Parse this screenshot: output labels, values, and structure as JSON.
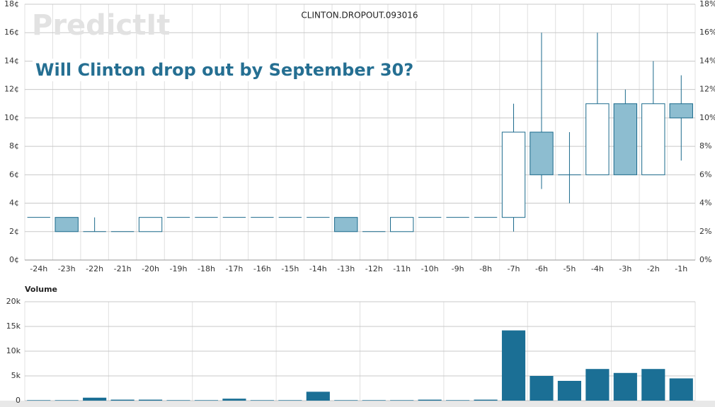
{
  "chart_data": [
    {
      "type": "candlestick",
      "title": "CLINTON.DROPOUT.093016",
      "subtitle": "Will Clinton drop out by September 30?",
      "watermark": "PredictIt",
      "categories": [
        "-24h",
        "-23h",
        "-22h",
        "-21h",
        "-20h",
        "-19h",
        "-18h",
        "-17h",
        "-16h",
        "-15h",
        "-14h",
        "-13h",
        "-12h",
        "-11h",
        "-10h",
        "-9h",
        "-8h",
        "-7h",
        "-6h",
        "-5h",
        "-4h",
        "-3h",
        "-2h",
        "-1h"
      ],
      "open": [
        3,
        3,
        2,
        2,
        2,
        3,
        3,
        3,
        3,
        3,
        3,
        3,
        2,
        2,
        3,
        3,
        3,
        3,
        9,
        6,
        6,
        11,
        6,
        11
      ],
      "high": [
        3,
        3,
        3,
        2,
        3,
        3,
        3,
        3,
        3,
        3,
        3,
        3,
        2,
        3,
        3,
        3,
        3,
        11,
        16,
        9,
        16,
        12,
        14,
        13
      ],
      "low": [
        3,
        2,
        2,
        2,
        2,
        3,
        3,
        3,
        3,
        3,
        3,
        2,
        2,
        2,
        3,
        3,
        3,
        2,
        5,
        4,
        6,
        6,
        6,
        7
      ],
      "close": [
        3,
        2,
        2,
        2,
        3,
        3,
        3,
        3,
        3,
        3,
        3,
        2,
        2,
        3,
        3,
        3,
        3,
        9,
        6,
        6,
        11,
        6,
        11,
        10
      ],
      "up_color": "#ffffff",
      "down_color": "#8dbdd0",
      "line_color": "#1b6a8c",
      "ylim": [
        0,
        18
      ],
      "yticks": [
        {
          "value": 0,
          "label": "0¢"
        },
        {
          "value": 2,
          "label": "2¢"
        },
        {
          "value": 4,
          "label": "4¢"
        },
        {
          "value": 6,
          "label": "6¢"
        },
        {
          "value": 8,
          "label": "8¢"
        },
        {
          "value": 10,
          "label": "10¢"
        },
        {
          "value": 12,
          "label": "12¢"
        },
        {
          "value": 14,
          "label": "14¢"
        },
        {
          "value": 16,
          "label": "16¢"
        },
        {
          "value": 18,
          "label": "18¢"
        }
      ],
      "y2lim": [
        0,
        18
      ],
      "y2ticks": [
        {
          "value": 0,
          "label": "0%"
        },
        {
          "value": 2,
          "label": "2%"
        },
        {
          "value": 4,
          "label": "4%"
        },
        {
          "value": 6,
          "label": "6%"
        },
        {
          "value": 8,
          "label": "8%"
        },
        {
          "value": 10,
          "label": "10%"
        },
        {
          "value": 12,
          "label": "12%"
        },
        {
          "value": 14,
          "label": "14%"
        },
        {
          "value": 16,
          "label": "16%"
        },
        {
          "value": 18,
          "label": "18%"
        }
      ],
      "grid": true
    },
    {
      "type": "bar",
      "title": "Volume",
      "values": [
        100,
        100,
        600,
        200,
        200,
        100,
        100,
        400,
        100,
        100,
        1800,
        100,
        100,
        100,
        200,
        100,
        200,
        14200,
        5000,
        4000,
        6400,
        5600,
        6400,
        4500
      ],
      "color": "#1b6f95",
      "ylim": [
        0,
        20000
      ],
      "yticks": [
        0,
        {
          "value": 5000,
          "label": "5k"
        },
        {
          "value": 10000,
          "label": "10k"
        },
        {
          "value": 15000,
          "label": "15k"
        },
        {
          "value": 20000,
          "label": "20k"
        }
      ],
      "grid": true
    }
  ]
}
